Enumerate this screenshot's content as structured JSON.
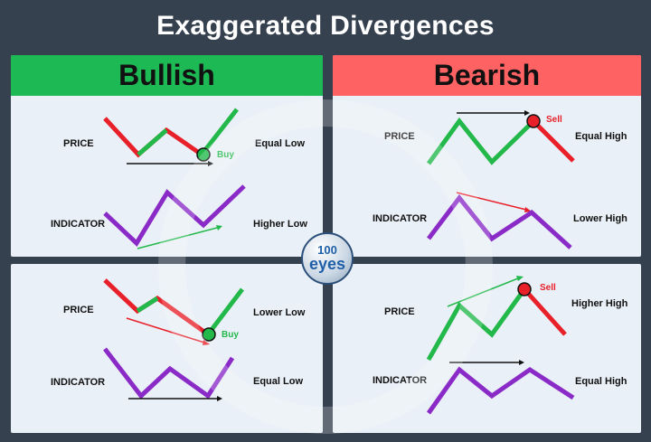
{
  "title": "Exaggerated Divergences",
  "headers": {
    "bullish": "Bullish",
    "bearish": "Bearish",
    "bullish_color": "#1db954",
    "bearish_color": "#ff6262"
  },
  "colors": {
    "price_up": "#22b84a",
    "price_down": "#e8202a",
    "indicator": "#8a2bc7",
    "trend_green": "#22b84a",
    "trend_red": "#e8202a",
    "trend_black": "#111111"
  },
  "logo": {
    "number": "100",
    "word": "eyes"
  },
  "panels": {
    "bull_top": {
      "price_label": "PRICE",
      "price_desc": "Equal Low",
      "indicator_label": "INDICATOR",
      "indicator_desc": "Higher Low",
      "signal": "Buy"
    },
    "bear_top": {
      "price_label": "PRICE",
      "price_desc": "Equal High",
      "indicator_label": "INDICATOR",
      "indicator_desc": "Lower High",
      "signal": "Sell"
    },
    "bull_bottom": {
      "price_label": "PRICE",
      "price_desc": "Lower Low",
      "indicator_label": "INDICATOR",
      "indicator_desc": "Equal Low",
      "signal": "Buy"
    },
    "bear_bottom": {
      "price_label": "PRICE",
      "price_desc": "Higher High",
      "indicator_label": "INDICATOR",
      "indicator_desc": "Equal High",
      "signal": "Sell"
    }
  }
}
